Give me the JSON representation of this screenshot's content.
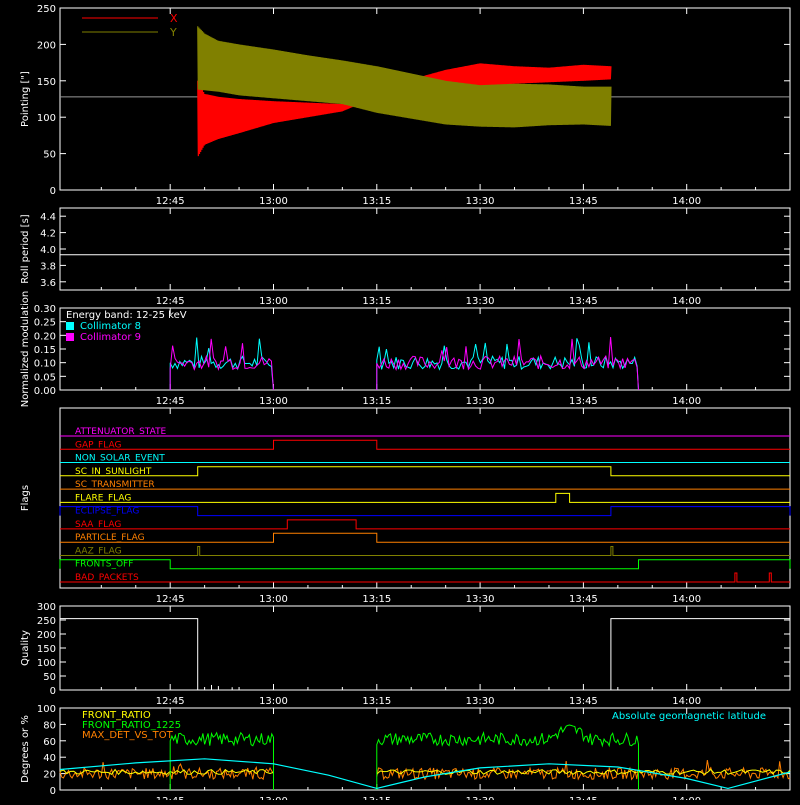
{
  "colors": {
    "background": "#000000",
    "axes": "#ffffff",
    "x_series": "#ff0000",
    "y_series": "#808000",
    "cyan": "#00ffff",
    "magenta": "#ff00ff",
    "green": "#00ff00",
    "orange": "#ff8000"
  },
  "time_ticks": [
    "12:45",
    "13:00",
    "13:15",
    "13:30",
    "13:45",
    "14:00"
  ],
  "chart_data": [
    {
      "id": "pointing",
      "type": "line",
      "ylabel": "Pointing [\"]",
      "ylim": [
        0,
        250
      ],
      "yticks": [
        "0",
        "50",
        "100",
        "150",
        "200",
        "250"
      ],
      "xlim": [
        "12:29",
        "14:15"
      ],
      "legend": [
        "X",
        "Y"
      ],
      "legend_placement": "top-left",
      "baseline_value": 128,
      "active_range": [
        "12:49",
        "13:49"
      ],
      "series": [
        {
          "name": "X",
          "color": "#ff0000",
          "envelope_times": [
            "12:49",
            "12:50",
            "12:52",
            "12:55",
            "13:00",
            "13:05",
            "13:10",
            "13:15",
            "13:20",
            "13:25",
            "13:30",
            "13:35",
            "13:40",
            "13:45",
            "13:49"
          ],
          "upper": [
            150,
            132,
            128,
            125,
            122,
            120,
            118,
            140,
            152,
            165,
            174,
            170,
            168,
            172,
            170
          ],
          "lower": [
            45,
            62,
            70,
            78,
            92,
            100,
            108,
            128,
            138,
            140,
            142,
            146,
            148,
            150,
            152
          ]
        },
        {
          "name": "Y",
          "color": "#808000",
          "envelope_times": [
            "12:49",
            "12:50",
            "12:52",
            "12:55",
            "13:00",
            "13:05",
            "13:10",
            "13:15",
            "13:20",
            "13:25",
            "13:30",
            "13:35",
            "13:40",
            "13:45",
            "13:49"
          ],
          "upper": [
            225,
            215,
            205,
            200,
            193,
            185,
            178,
            170,
            160,
            150,
            144,
            146,
            145,
            142,
            142
          ],
          "lower": [
            138,
            137,
            135,
            130,
            126,
            122,
            118,
            106,
            98,
            90,
            87,
            86,
            89,
            90,
            88
          ]
        }
      ]
    },
    {
      "id": "roll-period",
      "type": "line",
      "ylabel": "Roll period [s]",
      "ylim": [
        3.5,
        4.5
      ],
      "yticks": [
        "3.6",
        "3.8",
        "4.0",
        "4.2",
        "4.4"
      ],
      "series": [
        {
          "name": "",
          "constant": 3.93,
          "color": "#ffffff"
        }
      ]
    },
    {
      "id": "modulation",
      "type": "line",
      "ylabel": "Normalized modulation",
      "ylim": [
        0,
        0.3
      ],
      "yticks": [
        "0.00",
        "0.05",
        "0.10",
        "0.15",
        "0.20",
        "0.25",
        "0.30"
      ],
      "annotation": "Energy band: 12-25 keV",
      "series": [
        {
          "name": "Collimator 8",
          "color": "#00ffff",
          "level": 0.1,
          "intervals": [
            [
              "12:45",
              "13:00"
            ],
            [
              "13:15",
              "13:53"
            ]
          ]
        },
        {
          "name": "Collimator 9",
          "color": "#ff00ff",
          "level": 0.1,
          "intervals": [
            [
              "12:45",
              "13:00"
            ],
            [
              "13:15",
              "13:53"
            ]
          ]
        }
      ]
    },
    {
      "id": "flags",
      "type": "line",
      "ylabel": "Flags",
      "flags": [
        {
          "name": "ATTENUATOR_STATE",
          "color": "#ff00ff",
          "on": []
        },
        {
          "name": "GAP_FLAG",
          "color": "#ff0000",
          "on": [
            [
              "13:00",
              "13:15"
            ]
          ]
        },
        {
          "name": "NON_SOLAR_EVENT",
          "color": "#00ffff",
          "on": []
        },
        {
          "name": "SC_IN_SUNLIGHT",
          "color": "#ffff00",
          "on": [
            [
              "12:49",
              "13:49"
            ]
          ]
        },
        {
          "name": "SC_TRANSMITTER",
          "color": "#ff8000",
          "on": []
        },
        {
          "name": "FLARE_FLAG",
          "color": "#ffff00",
          "on": [
            [
              "13:41",
              "13:43"
            ]
          ]
        },
        {
          "name": "ECLIPSE_FLAG",
          "color": "#0000ff",
          "on": [
            [
              "12:29",
              "12:49"
            ],
            [
              "13:49",
              "14:15"
            ]
          ]
        },
        {
          "name": "SAA_FLAG",
          "color": "#ff0000",
          "on": [
            [
              "13:02",
              "13:12"
            ]
          ]
        },
        {
          "name": "PARTICLE_FLAG",
          "color": "#ff8000",
          "on": [
            [
              "13:00",
              "13:15"
            ]
          ]
        },
        {
          "name": "AAZ_FLAG",
          "color": "#808000",
          "on": [
            [
              "12:49",
              "12:49"
            ],
            [
              "13:49",
              "13:49"
            ]
          ]
        },
        {
          "name": "FRONTS_OFF",
          "color": "#00ff00",
          "on": [
            [
              "12:29",
              "12:45"
            ],
            [
              "13:53",
              "14:15"
            ]
          ]
        },
        {
          "name": "BAD_PACKETS",
          "color": "#ff0000",
          "on": [
            [
              "14:07",
              "14:07"
            ],
            [
              "14:12",
              "14:12"
            ]
          ]
        }
      ]
    },
    {
      "id": "quality",
      "type": "line",
      "ylabel": "Quality",
      "ylim": [
        0,
        300
      ],
      "yticks": [
        "0",
        "50",
        "100",
        "150",
        "200",
        "250",
        "300"
      ],
      "series": [
        {
          "name": "",
          "color": "#ffffff",
          "points": [
            [
              "12:29",
              255
            ],
            [
              "12:49",
              255
            ],
            [
              "12:49",
              0
            ],
            [
              "13:49",
              0
            ],
            [
              "13:49",
              255
            ],
            [
              "14:15",
              255
            ]
          ]
        }
      ]
    },
    {
      "id": "degrees",
      "type": "line",
      "ylabel": "Degrees or %",
      "ylim": [
        0,
        100
      ],
      "yticks": [
        "0",
        "20",
        "40",
        "60",
        "80",
        "100"
      ],
      "annotation": "Absolute geomagnetic latitude",
      "series": [
        {
          "name": "FRONT_RATIO",
          "color": "#ffff00",
          "level": 22
        },
        {
          "name": "FRONT_RATIO_1225",
          "color": "#00ff00",
          "intervals": [
            [
              "12:45",
              "13:00"
            ],
            [
              "13:15",
              "13:53"
            ]
          ],
          "level": 62
        },
        {
          "name": "MAX_DET_VS_TOT",
          "color": "#ff8000",
          "level": 20
        },
        {
          "name": "Absolute geomagnetic latitude",
          "color": "#00ffff",
          "points": [
            [
              "12:29",
              25
            ],
            [
              "12:40",
              33
            ],
            [
              "12:50",
              38
            ],
            [
              "13:00",
              32
            ],
            [
              "13:08",
              18
            ],
            [
              "13:15",
              2
            ],
            [
              "13:22",
              16
            ],
            [
              "13:30",
              27
            ],
            [
              "13:40",
              32
            ],
            [
              "13:50",
              28
            ],
            [
              "14:00",
              14
            ],
            [
              "14:06",
              2
            ],
            [
              "14:15",
              22
            ]
          ]
        }
      ]
    }
  ]
}
